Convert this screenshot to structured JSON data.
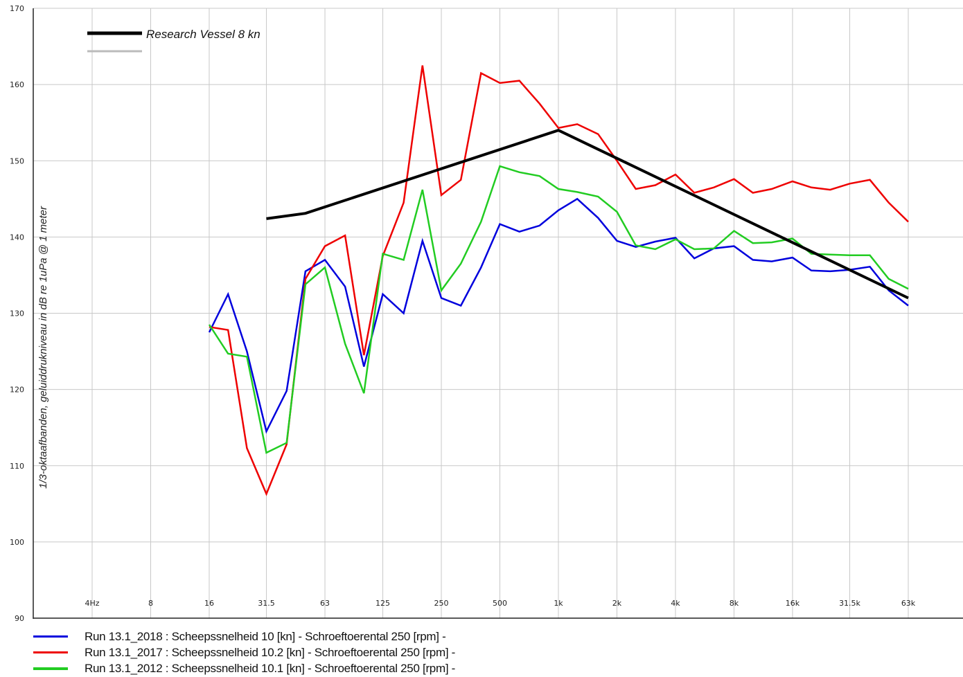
{
  "chart_data": {
    "type": "line",
    "ylabel": "1/3-oktaafbanden, geluiddrukniveau in dB re 1uPa @ 1 meter",
    "ylim": [
      90,
      170
    ],
    "yticks": [
      "90",
      "100",
      "110",
      "120",
      "130",
      "140",
      "150",
      "160",
      "170"
    ],
    "x_scale": "log2 (1/3-octave bands)",
    "grid": true,
    "xticks": [
      {
        "hz": 4,
        "label": "4Hz"
      },
      {
        "hz": 8,
        "label": "8"
      },
      {
        "hz": 16,
        "label": "16"
      },
      {
        "hz": 31.5,
        "label": "31.5"
      },
      {
        "hz": 63,
        "label": "63"
      },
      {
        "hz": 125,
        "label": "125"
      },
      {
        "hz": 250,
        "label": "250"
      },
      {
        "hz": 500,
        "label": "500"
      },
      {
        "hz": 1000,
        "label": "1k"
      },
      {
        "hz": 2000,
        "label": "2k"
      },
      {
        "hz": 4000,
        "label": "4k"
      },
      {
        "hz": 8000,
        "label": "8k"
      },
      {
        "hz": 16000,
        "label": "16k"
      },
      {
        "hz": 31500,
        "label": "31.5k"
      },
      {
        "hz": 63000,
        "label": "63k"
      }
    ],
    "x": [
      16,
      20,
      25,
      31.5,
      40,
      50,
      63,
      80,
      100,
      125,
      160,
      200,
      250,
      315,
      400,
      500,
      630,
      800,
      1000,
      1250,
      1600,
      2000,
      2500,
      3150,
      4000,
      5000,
      6300,
      8000,
      10000,
      12500,
      16000,
      20000,
      25000,
      31500,
      40000,
      50000,
      63000
    ],
    "series": [
      {
        "name": "Run 13.1_2018 : Scheepssnelheid 10 [kn] - Schroeftoerental 250 [rpm] -",
        "color": "#0000dd",
        "values": [
          127.5,
          132.5,
          125,
          114.5,
          119.8,
          135.5,
          137,
          133.5,
          123,
          132.5,
          130,
          139.5,
          132,
          131,
          136,
          141.7,
          140.7,
          141.5,
          143.5,
          145,
          142.5,
          139.5,
          138.7,
          139.4,
          139.9,
          137.2,
          138.5,
          138.8,
          137,
          136.8,
          137.3,
          135.6,
          135.5,
          135.7,
          136.1,
          133,
          131
        ]
      },
      {
        "name": "Run 13.1_2017 : Scheepssnelheid 10.2 [kn] - Schroeftoerental 250 [rpm] -",
        "color": "#ee0000",
        "values": [
          128.2,
          127.8,
          112.3,
          106.3,
          112.8,
          134.5,
          138.8,
          140.2,
          124.5,
          137.5,
          144.5,
          162.5,
          145.5,
          147.5,
          161.5,
          160.2,
          160.5,
          157.5,
          154.3,
          154.8,
          153.5,
          150,
          146.3,
          146.8,
          148.2,
          145.8,
          146.5,
          147.6,
          145.8,
          146.3,
          147.3,
          146.5,
          146.2,
          147,
          147.5,
          144.5,
          142
        ]
      },
      {
        "name": "Run 13.1_2012 : Scheepssnelheid 10.1 [kn] - Schroeftoerental 250 [rpm] -",
        "color": "#22cc22",
        "values": [
          128.5,
          124.7,
          124.3,
          111.7,
          113,
          133.8,
          136,
          126,
          119.5,
          137.8,
          137,
          146.2,
          133,
          136.5,
          142,
          149.3,
          148.5,
          148,
          146.3,
          145.9,
          145.3,
          143.3,
          138.9,
          138.4,
          139.7,
          138.4,
          138.5,
          140.8,
          139.2,
          139.3,
          139.8,
          137.8,
          137.7,
          137.6,
          137.6,
          134.5,
          133.2
        ]
      },
      {
        "name": "Research Vessel 8 kn",
        "color": "#000000",
        "x": [
          31.5,
          50,
          1000,
          63000
        ],
        "values": [
          142.4,
          143.1,
          154,
          132
        ]
      }
    ],
    "legend_top": {
      "position": "top-left",
      "entries": [
        {
          "label": "Research Vessel 8 kn",
          "color": "#000000"
        },
        {
          "label": "",
          "color": "#bbbbbb"
        }
      ]
    },
    "legend_bottom": {
      "position": "bottom",
      "entries": [
        {
          "label": "Run 13.1_2018 : Scheepssnelheid 10 [kn] - Schroeftoerental 250 [rpm] -",
          "color": "#0000dd"
        },
        {
          "label": "Run 13.1_2017 : Scheepssnelheid 10.2 [kn] - Schroeftoerental 250 [rpm] -",
          "color": "#ee0000"
        },
        {
          "label": "Run 13.1_2012 : Scheepssnelheid 10.1 [kn] - Schroeftoerental 250 [rpm] -",
          "color": "#22cc22"
        }
      ]
    }
  }
}
